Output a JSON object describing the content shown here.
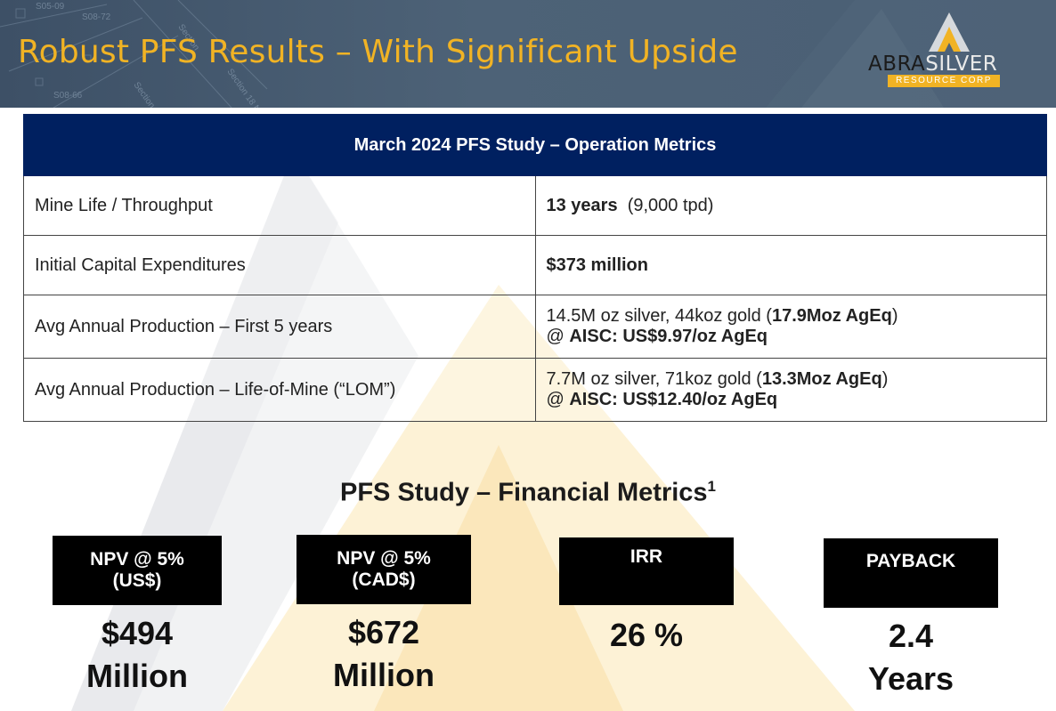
{
  "header": {
    "title": "Robust PFS Results – With Significant Upside",
    "logo": {
      "word_part1": "ABRA",
      "word_part2": "SILVER",
      "subtitle": "RESOURCE CORP",
      "icon": "abra-triangle-logo-icon"
    },
    "map_labels": [
      "S05-09",
      "S08-72",
      "Section",
      "S08-66",
      "Section",
      "Section 18 NE"
    ]
  },
  "operations_table": {
    "header": "March 2024 PFS Study – Operation Metrics",
    "rows": [
      {
        "label": "Mine Life / Throughput",
        "value_bold": "13 years",
        "value_rest": "(9,000 tpd)"
      },
      {
        "label": "Initial Capital Expenditures",
        "value_bold": "$373 million"
      },
      {
        "label": "Avg Annual Production – First 5 years",
        "line1_text": "14.5M oz silver,  44koz gold  (",
        "line1_bold": "17.9Moz AgEq",
        "line1_close": ")",
        "line2_prefix": "@ ",
        "line2_bold": "AISC: US$9.97/oz AgEq"
      },
      {
        "label": "Avg Annual Production – Life-of-Mine (“LOM”)",
        "line1_text": "7.7M oz silver,  71koz gold  (",
        "line1_bold": "13.3Moz AgEq",
        "line1_close": ")",
        "line2_prefix": "@ ",
        "line2_bold": "AISC: US$12.40/oz AgEq"
      }
    ]
  },
  "financial": {
    "title": "PFS Study – Financial Metrics",
    "footnote_marker": "1",
    "metrics": [
      {
        "label_line1": "NPV @ 5%",
        "label_line2": "(US$)",
        "value": "$494\nMillion"
      },
      {
        "label_line1": "NPV @ 5%",
        "label_line2": "(CAD$)",
        "value": "$672\nMillion"
      },
      {
        "label_line1": "IRR",
        "label_line2": "",
        "value": "26 %"
      },
      {
        "label_line1": "PAYBACK",
        "label_line2": "",
        "value": "2.4\nYears"
      }
    ]
  },
  "colors": {
    "title_gold": "#f1b324",
    "table_header_navy": "#002060",
    "header_slate": "#4a5f74"
  }
}
